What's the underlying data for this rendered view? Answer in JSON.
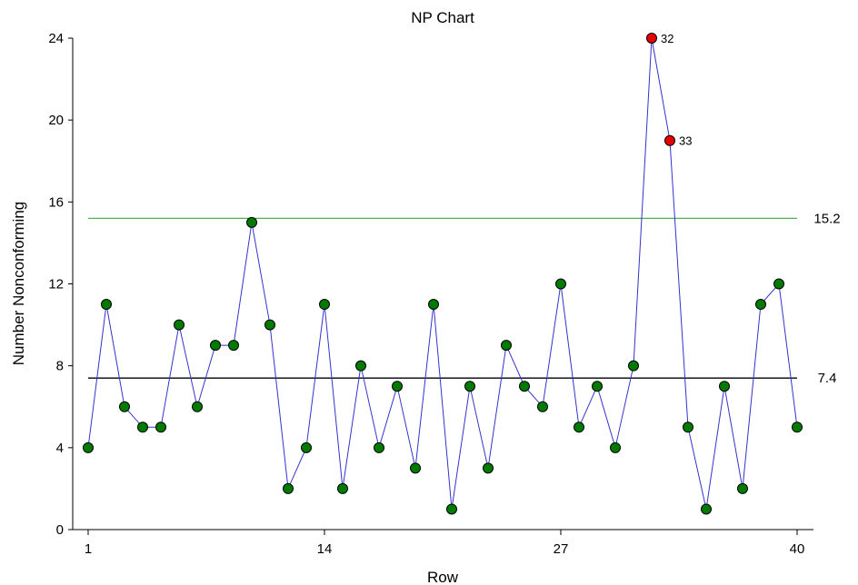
{
  "chart_data": {
    "type": "line",
    "title": "NP Chart",
    "xlabel": "Row",
    "ylabel": "Number Nonconforming",
    "xlim": [
      1,
      40
    ],
    "ylim": [
      0,
      24
    ],
    "x_ticks": [
      1,
      14,
      27,
      40
    ],
    "y_ticks": [
      0,
      4,
      8,
      12,
      16,
      20,
      24
    ],
    "center_line": {
      "value": 7.4,
      "label": "7.4",
      "color": "#000000"
    },
    "upper_control_limit": {
      "value": 15.2,
      "label": "15.2",
      "color": "#4caf50"
    },
    "series": [
      {
        "line_color": "#3333cc",
        "marker_color": "#007a00",
        "x": [
          1,
          2,
          3,
          4,
          5,
          6,
          7,
          8,
          9,
          10,
          11,
          12,
          13,
          14,
          15,
          16,
          17,
          18,
          19,
          20,
          21,
          22,
          23,
          24,
          25,
          26,
          27,
          28,
          29,
          30,
          31,
          32,
          33,
          34,
          35,
          36,
          37,
          38,
          39,
          40
        ],
        "values": [
          4,
          11,
          6,
          5,
          5,
          10,
          6,
          9,
          9,
          15,
          10,
          2,
          4,
          11,
          2,
          8,
          4,
          7,
          3,
          11,
          1,
          7,
          3,
          9,
          7,
          6,
          12,
          5,
          7,
          4,
          8,
          24,
          19,
          5,
          1,
          7,
          2,
          11,
          12,
          5
        ]
      }
    ],
    "out_of_control": [
      {
        "row": 32,
        "value": 24,
        "label": "32",
        "color": "#e60000"
      },
      {
        "row": 33,
        "value": 19,
        "label": "33",
        "color": "#e60000"
      }
    ],
    "grid": false
  }
}
